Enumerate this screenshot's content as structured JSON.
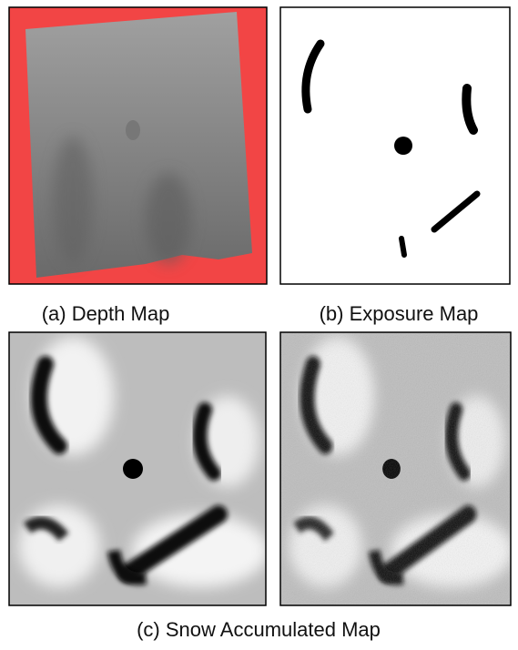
{
  "figure": {
    "captions": [
      "(a) Depth Map",
      "(b) Exposure Map",
      "(c) Snow Accumulated Map"
    ]
  }
}
